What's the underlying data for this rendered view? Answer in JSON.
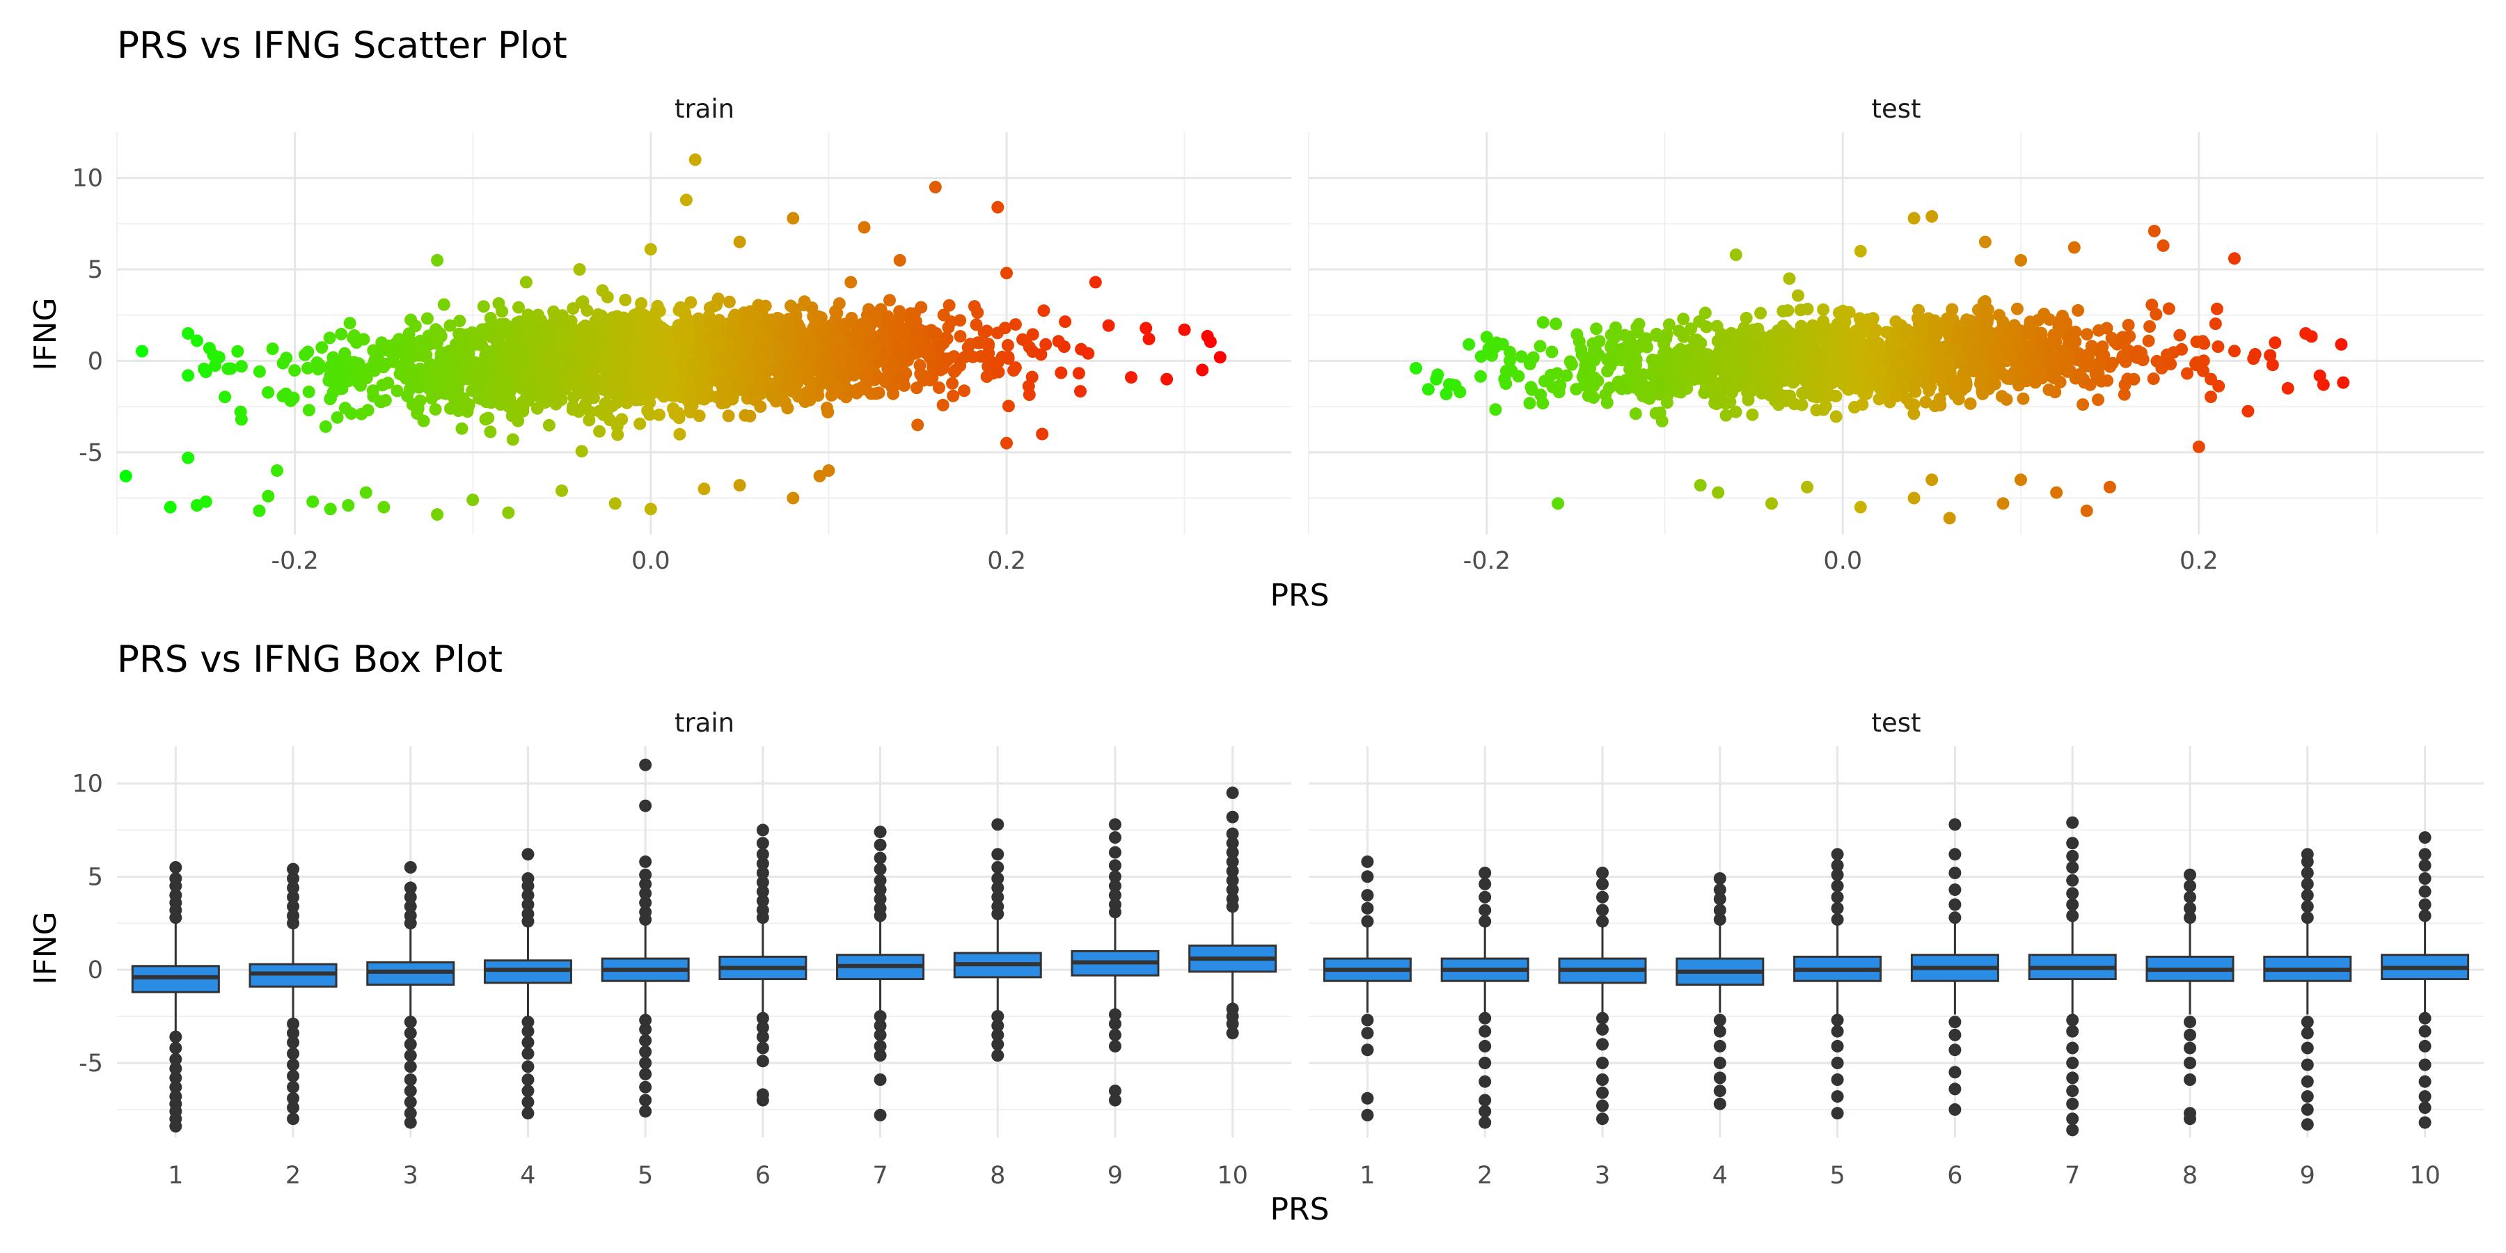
{
  "chart_data": [
    {
      "type": "scatter",
      "title": "PRS vs IFNG Scatter Plot",
      "xlabel": "PRS",
      "ylabel": "IFNG",
      "facets": [
        "train",
        "test"
      ],
      "xlim": [
        -0.3,
        0.36
      ],
      "ylim": [
        -9.5,
        12.5
      ],
      "xticks": [
        -0.2,
        0.0,
        0.2
      ],
      "xtick_labels": [
        "-0.2",
        "0.0",
        "0.2"
      ],
      "yticks": [
        -5,
        0,
        5,
        10
      ],
      "ytick_labels": [
        "-5",
        "0",
        "5",
        "10"
      ],
      "grid": true,
      "color_gradient": {
        "low": "#00ff00",
        "mid": "#c8b400",
        "high": "#ff0000",
        "mapped_to": "PRS"
      },
      "facet_data": {
        "train": {
          "x_range": [
            -0.3,
            0.32
          ],
          "slope": 5.0,
          "core_spread": 1.2,
          "points": [
            [
              -0.295,
              -6.3
            ],
            [
              -0.27,
              -8.0
            ],
            [
              -0.26,
              -5.3
            ],
            [
              -0.255,
              -7.9
            ],
            [
              -0.25,
              -7.7
            ],
            [
              -0.26,
              1.5
            ],
            [
              -0.255,
              1.1
            ],
            [
              -0.25,
              -0.6
            ],
            [
              -0.26,
              -0.8
            ],
            [
              -0.23,
              -0.3
            ],
            [
              -0.22,
              -8.2
            ],
            [
              -0.215,
              -7.4
            ],
            [
              -0.21,
              -6.0
            ],
            [
              -0.205,
              -1.8
            ],
            [
              -0.23,
              -3.2
            ],
            [
              -0.19,
              -7.7
            ],
            [
              -0.18,
              -8.1
            ],
            [
              -0.17,
              -7.9
            ],
            [
              -0.16,
              -7.2
            ],
            [
              -0.15,
              -8.0
            ],
            [
              -0.12,
              -8.4
            ],
            [
              -0.1,
              -7.6
            ],
            [
              -0.08,
              -8.3
            ],
            [
              -0.05,
              -7.1
            ],
            [
              -0.02,
              -7.8
            ],
            [
              0.0,
              -8.1
            ],
            [
              0.03,
              -7.0
            ],
            [
              0.05,
              -6.8
            ],
            [
              0.08,
              -7.5
            ],
            [
              0.095,
              -6.3
            ],
            [
              0.1,
              -6.0
            ],
            [
              0.2,
              -4.5
            ],
            [
              0.22,
              -4.0
            ],
            [
              0.15,
              -3.5
            ],
            [
              -0.12,
              5.5
            ],
            [
              -0.07,
              4.3
            ],
            [
              -0.04,
              5.0
            ],
            [
              0.0,
              6.1
            ],
            [
              0.02,
              8.8
            ],
            [
              0.025,
              11.0
            ],
            [
              0.05,
              6.5
            ],
            [
              0.08,
              7.8
            ],
            [
              0.12,
              7.3
            ],
            [
              0.16,
              9.5
            ],
            [
              0.195,
              8.4
            ],
            [
              0.14,
              5.5
            ],
            [
              0.2,
              4.8
            ],
            [
              0.25,
              4.3
            ],
            [
              0.3,
              1.7
            ],
            [
              0.32,
              0.2
            ],
            [
              0.31,
              -0.5
            ],
            [
              0.28,
              1.2
            ],
            [
              0.29,
              -1.0
            ],
            [
              0.27,
              -0.9
            ]
          ]
        },
        "test": {
          "x_range": [
            -0.24,
            0.29
          ],
          "slope": 4.2,
          "core_spread": 1.1,
          "points": [
            [
              -0.22,
              -1.3
            ],
            [
              -0.215,
              -1.7
            ],
            [
              -0.21,
              0.9
            ],
            [
              -0.2,
              1.3
            ],
            [
              -0.19,
              -1.0
            ],
            [
              -0.16,
              -7.8
            ],
            [
              -0.17,
              0.8
            ],
            [
              -0.14,
              -2.0
            ],
            [
              -0.08,
              -6.8
            ],
            [
              -0.07,
              -7.2
            ],
            [
              -0.04,
              -7.8
            ],
            [
              -0.02,
              -6.9
            ],
            [
              0.01,
              -8.0
            ],
            [
              0.04,
              -7.5
            ],
            [
              0.06,
              -8.6
            ],
            [
              0.09,
              -7.8
            ],
            [
              0.1,
              -6.5
            ],
            [
              0.12,
              -7.2
            ],
            [
              0.137,
              -8.2
            ],
            [
              0.15,
              -6.9
            ],
            [
              0.05,
              -6.5
            ],
            [
              -0.06,
              5.8
            ],
            [
              -0.03,
              4.5
            ],
            [
              0.01,
              6.0
            ],
            [
              0.04,
              7.8
            ],
            [
              0.05,
              7.9
            ],
            [
              0.08,
              6.5
            ],
            [
              0.1,
              5.5
            ],
            [
              0.13,
              6.2
            ],
            [
              0.175,
              7.1
            ],
            [
              0.18,
              6.3
            ],
            [
              0.22,
              5.6
            ],
            [
              0.26,
              1.5
            ],
            [
              0.28,
              0.9
            ],
            [
              0.27,
              -1.3
            ],
            [
              0.25,
              -1.5
            ],
            [
              0.2,
              -4.7
            ],
            [
              0.24,
              0.3
            ]
          ]
        }
      }
    },
    {
      "type": "box",
      "title": "PRS vs IFNG Box Plot",
      "xlabel": "PRS",
      "ylabel": "IFNG",
      "facets": [
        "train",
        "test"
      ],
      "categories": [
        "1",
        "2",
        "3",
        "4",
        "5",
        "6",
        "7",
        "8",
        "9",
        "10"
      ],
      "ylim": [
        -9.0,
        12.0
      ],
      "yticks": [
        -5,
        0,
        5,
        10
      ],
      "ytick_labels": [
        "-5",
        "0",
        "5",
        "10"
      ],
      "grid": true,
      "box_color": "#2b8ce6",
      "facet_data": {
        "train": [
          {
            "q1": -1.2,
            "median": -0.4,
            "q3": 0.2,
            "whisker_low": -3.3,
            "whisker_high": 2.5,
            "outliers_low": [
              -3.6,
              -4.2,
              -4.8,
              -5.3,
              -5.8,
              -6.3,
              -6.8,
              -7.2,
              -7.6,
              -8.0,
              -8.4
            ],
            "outliers_high": [
              2.8,
              3.2,
              3.6,
              4.0,
              4.5,
              4.9,
              5.5
            ]
          },
          {
            "q1": -0.9,
            "median": -0.2,
            "q3": 0.3,
            "whisker_low": -2.7,
            "whisker_high": 2.2,
            "outliers_low": [
              -2.9,
              -3.4,
              -3.9,
              -4.5,
              -5.1,
              -5.7,
              -6.3,
              -6.9,
              -7.4,
              -8.0
            ],
            "outliers_high": [
              2.5,
              2.9,
              3.4,
              3.9,
              4.4,
              4.9,
              5.4
            ]
          },
          {
            "q1": -0.8,
            "median": -0.1,
            "q3": 0.4,
            "whisker_low": -2.6,
            "whisker_high": 2.2,
            "outliers_low": [
              -2.8,
              -3.4,
              -4.0,
              -4.6,
              -5.2,
              -5.9,
              -6.5,
              -7.1,
              -7.7,
              -8.2
            ],
            "outliers_high": [
              2.5,
              2.9,
              3.4,
              3.9,
              4.4,
              5.5
            ]
          },
          {
            "q1": -0.7,
            "median": 0.0,
            "q3": 0.5,
            "whisker_low": -2.5,
            "whisker_high": 2.3,
            "outliers_low": [
              -2.8,
              -3.3,
              -3.9,
              -4.5,
              -5.2,
              -5.9,
              -6.5,
              -7.1,
              -7.7
            ],
            "outliers_high": [
              2.6,
              3.0,
              3.5,
              4.0,
              4.5,
              4.9,
              6.2
            ]
          },
          {
            "q1": -0.6,
            "median": 0.0,
            "q3": 0.6,
            "whisker_low": -2.4,
            "whisker_high": 2.4,
            "outliers_low": [
              -2.7,
              -3.2,
              -3.8,
              -4.4,
              -5.0,
              -5.6,
              -6.3,
              -7.0,
              -7.6
            ],
            "outliers_high": [
              2.7,
              3.1,
              3.6,
              4.1,
              4.6,
              5.1,
              5.8,
              8.8,
              11.0
            ]
          },
          {
            "q1": -0.5,
            "median": 0.1,
            "q3": 0.7,
            "whisker_low": -2.3,
            "whisker_high": 2.5,
            "outliers_low": [
              -2.6,
              -3.1,
              -3.6,
              -4.2,
              -4.9,
              -6.7,
              -7.0
            ],
            "outliers_high": [
              2.8,
              3.2,
              3.7,
              4.2,
              4.7,
              5.2,
              5.7,
              6.2,
              6.8,
              7.5
            ]
          },
          {
            "q1": -0.5,
            "median": 0.2,
            "q3": 0.8,
            "whisker_low": -2.2,
            "whisker_high": 2.6,
            "outliers_low": [
              -2.5,
              -3.0,
              -3.5,
              -4.1,
              -4.6,
              -5.9,
              -7.8
            ],
            "outliers_high": [
              2.9,
              3.3,
              3.8,
              4.3,
              4.8,
              5.4,
              6.0,
              6.7,
              7.4
            ]
          },
          {
            "q1": -0.4,
            "median": 0.3,
            "q3": 0.9,
            "whisker_low": -2.2,
            "whisker_high": 2.7,
            "outliers_low": [
              -2.5,
              -3.0,
              -3.5,
              -4.0,
              -4.6
            ],
            "outliers_high": [
              3.0,
              3.4,
              3.9,
              4.4,
              4.9,
              5.5,
              6.2,
              7.8
            ]
          },
          {
            "q1": -0.3,
            "median": 0.4,
            "q3": 1.0,
            "whisker_low": -2.1,
            "whisker_high": 2.8,
            "outliers_low": [
              -2.4,
              -2.9,
              -3.5,
              -4.1,
              -6.5,
              -7.0
            ],
            "outliers_high": [
              3.1,
              3.5,
              4.0,
              4.5,
              5.0,
              5.6,
              6.3,
              7.1,
              7.8
            ]
          },
          {
            "q1": -0.1,
            "median": 0.6,
            "q3": 1.3,
            "whisker_low": -1.9,
            "whisker_high": 3.1,
            "outliers_low": [
              -2.1,
              -2.5,
              -2.9,
              -3.4
            ],
            "outliers_high": [
              3.4,
              3.8,
              4.3,
              4.8,
              5.3,
              5.8,
              6.3,
              6.8,
              7.3,
              8.2,
              9.5
            ]
          }
        ],
        "test": [
          {
            "q1": -0.6,
            "median": 0.0,
            "q3": 0.6,
            "whisker_low": -2.3,
            "whisker_high": 2.3,
            "outliers_low": [
              -2.7,
              -3.4,
              -4.3,
              -6.9,
              -7.8
            ],
            "outliers_high": [
              2.6,
              3.3,
              4.0,
              5.0,
              5.8
            ]
          },
          {
            "q1": -0.6,
            "median": 0.0,
            "q3": 0.6,
            "whisker_low": -2.3,
            "whisker_high": 2.3,
            "outliers_low": [
              -2.6,
              -3.3,
              -4.1,
              -5.0,
              -6.0,
              -7.0,
              -7.6,
              -8.2
            ],
            "outliers_high": [
              2.6,
              3.2,
              3.9,
              4.6,
              5.2
            ]
          },
          {
            "q1": -0.7,
            "median": 0.0,
            "q3": 0.6,
            "whisker_low": -2.3,
            "whisker_high": 2.3,
            "outliers_low": [
              -2.6,
              -3.2,
              -4.0,
              -5.0,
              -5.9,
              -6.6,
              -7.3,
              -8.0
            ],
            "outliers_high": [
              2.6,
              3.2,
              3.9,
              4.6,
              5.2
            ]
          },
          {
            "q1": -0.8,
            "median": -0.1,
            "q3": 0.6,
            "whisker_low": -2.3,
            "whisker_high": 2.4,
            "outliers_low": [
              -2.7,
              -3.3,
              -4.1,
              -5.0,
              -5.8,
              -6.5,
              -7.2
            ],
            "outliers_high": [
              2.7,
              3.2,
              3.8,
              4.3,
              4.9
            ]
          },
          {
            "q1": -0.6,
            "median": 0.0,
            "q3": 0.7,
            "whisker_low": -2.4,
            "whisker_high": 2.4,
            "outliers_low": [
              -2.7,
              -3.3,
              -4.1,
              -5.0,
              -5.9,
              -6.8,
              -7.7
            ],
            "outliers_high": [
              2.7,
              3.3,
              3.9,
              4.5,
              5.1,
              5.6,
              6.2
            ]
          },
          {
            "q1": -0.6,
            "median": 0.1,
            "q3": 0.8,
            "whisker_low": -2.4,
            "whisker_high": 2.5,
            "outliers_low": [
              -2.8,
              -3.5,
              -4.3,
              -5.5,
              -6.4,
              -7.5
            ],
            "outliers_high": [
              2.8,
              3.5,
              4.3,
              5.2,
              6.2,
              7.8
            ]
          },
          {
            "q1": -0.5,
            "median": 0.1,
            "q3": 0.8,
            "whisker_low": -2.4,
            "whisker_high": 2.6,
            "outliers_low": [
              -2.7,
              -3.3,
              -4.2,
              -5.0,
              -5.8,
              -6.5,
              -7.2,
              -8.0,
              -8.6
            ],
            "outliers_high": [
              2.9,
              3.5,
              4.1,
              4.8,
              5.5,
              6.1,
              6.8,
              7.9
            ]
          },
          {
            "q1": -0.6,
            "median": 0.0,
            "q3": 0.7,
            "whisker_low": -2.4,
            "whisker_high": 2.5,
            "outliers_low": [
              -2.8,
              -3.5,
              -4.2,
              -5.0,
              -5.9,
              -7.7,
              -8.0
            ],
            "outliers_high": [
              2.8,
              3.3,
              3.9,
              4.5,
              5.1
            ]
          },
          {
            "q1": -0.6,
            "median": 0.0,
            "q3": 0.7,
            "whisker_low": -2.4,
            "whisker_high": 2.5,
            "outliers_low": [
              -2.8,
              -3.4,
              -4.2,
              -5.1,
              -6.0,
              -6.8,
              -7.5,
              -8.3
            ],
            "outliers_high": [
              2.8,
              3.4,
              4.0,
              4.6,
              5.2,
              5.8,
              6.2
            ]
          },
          {
            "q1": -0.5,
            "median": 0.1,
            "q3": 0.8,
            "whisker_low": -2.3,
            "whisker_high": 2.6,
            "outliers_low": [
              -2.6,
              -3.3,
              -4.1,
              -5.1,
              -6.0,
              -6.8,
              -7.4,
              -8.2
            ],
            "outliers_high": [
              2.9,
              3.5,
              4.2,
              4.9,
              5.6,
              6.2,
              7.1
            ]
          }
        ]
      }
    }
  ]
}
